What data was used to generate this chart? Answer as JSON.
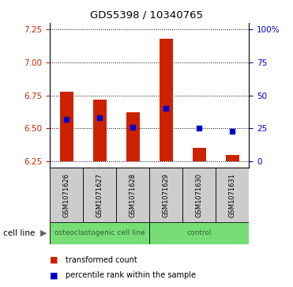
{
  "title": "GDS5398 / 10340765",
  "samples": [
    "GSM1071626",
    "GSM1071627",
    "GSM1071628",
    "GSM1071629",
    "GSM1071630",
    "GSM1071631"
  ],
  "bar_bottoms": [
    6.25,
    6.25,
    6.25,
    6.25,
    6.25,
    6.25
  ],
  "bar_tops": [
    6.78,
    6.72,
    6.62,
    7.18,
    6.35,
    6.3
  ],
  "percentile_values": [
    6.57,
    6.58,
    6.51,
    6.65,
    6.5,
    6.48
  ],
  "ylim": [
    6.2,
    7.3
  ],
  "yticks_left": [
    6.25,
    6.5,
    6.75,
    7.0,
    7.25
  ],
  "yticks_right_labels": [
    "0",
    "25",
    "50",
    "75",
    "100%"
  ],
  "yticks_right_vals": [
    6.25,
    6.5,
    6.75,
    7.0,
    7.25
  ],
  "bar_color": "#cc2200",
  "dot_color": "#0000cc",
  "group_labels": [
    "osteoclastogenic cell line",
    "control"
  ],
  "group_ranges": [
    [
      0,
      3
    ],
    [
      3,
      6
    ]
  ],
  "group_color": "#77dd77",
  "cell_line_label": "cell line",
  "legend_bar_label": "transformed count",
  "legend_dot_label": "percentile rank within the sample",
  "left_tick_color": "#cc2200",
  "right_tick_color": "#0000cc",
  "bg_color": "#ffffff",
  "sample_box_color": "#cccccc"
}
